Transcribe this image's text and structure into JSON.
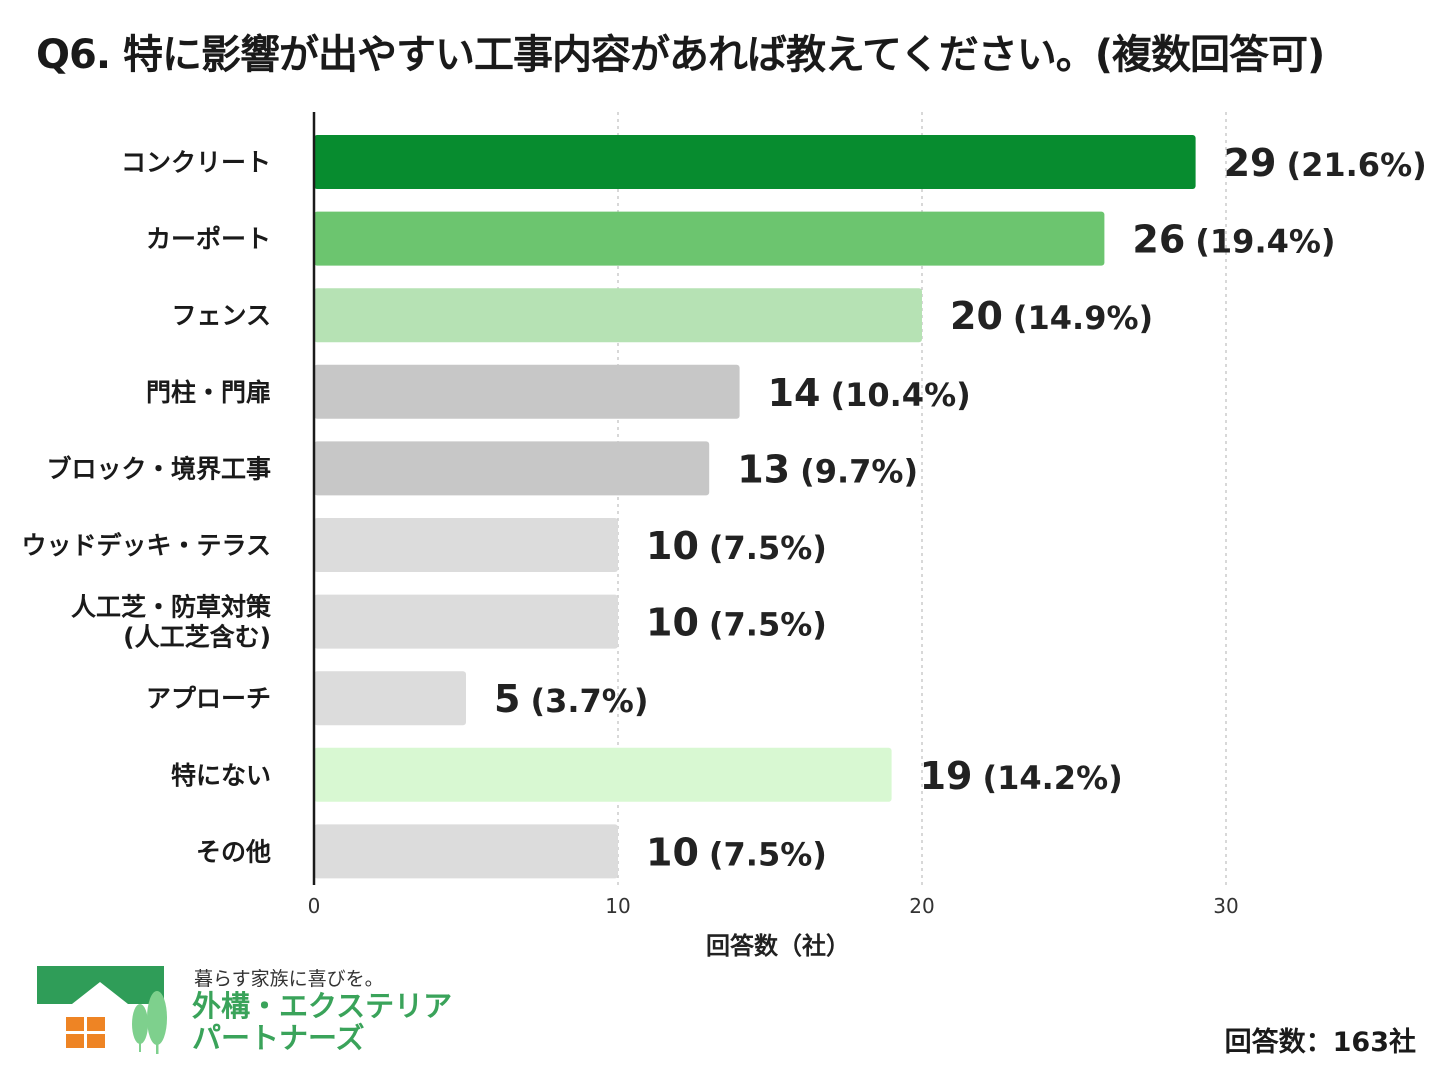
{
  "title": "Q6. 特に影響が出やすい工事内容があれば教えてください。(複数回答可)",
  "chart_data": {
    "type": "bar",
    "orientation": "horizontal",
    "categories": [
      "コンクリート",
      "カーポート",
      "フェンス",
      "門柱・門扉",
      "ブロック・境界工事",
      "ウッドデッキ・テラス",
      [
        "人工芝・防草対策",
        "(人工芝含む)"
      ],
      "アプローチ",
      "特にない",
      "その他"
    ],
    "values": [
      29,
      26,
      20,
      14,
      13,
      10,
      10,
      5,
      19,
      10
    ],
    "percent_labels": [
      "(21.6%)",
      "(19.4%)",
      "(14.9%)",
      "(10.4%)",
      "(9.7%)",
      "(7.5%)",
      "(7.5%)",
      "(3.7%)",
      "(14.2%)",
      "(7.5%)"
    ],
    "colors": [
      "#078c2f",
      "#6cc56f",
      "#b6e2b4",
      "#c7c7c7",
      "#c7c7c7",
      "#dcdcdc",
      "#dcdcdc",
      "#dcdcdc",
      "#d8f8d2",
      "#dcdcdc"
    ],
    "xlabel": "回答数（社）",
    "xlim": [
      0,
      30
    ],
    "xticks": [
      0,
      10,
      20,
      30
    ],
    "grid": "vertical-dashed"
  },
  "footer": {
    "tagline": "暮らす家族に喜びを。",
    "brand_line1": "外構・エクステリア",
    "brand_line2": "パートナーズ",
    "respondents": "回答数：163社"
  },
  "logo_colors": {
    "roof": "#2f9d58",
    "window": "#ee8424",
    "tree": "#7ed08d"
  }
}
